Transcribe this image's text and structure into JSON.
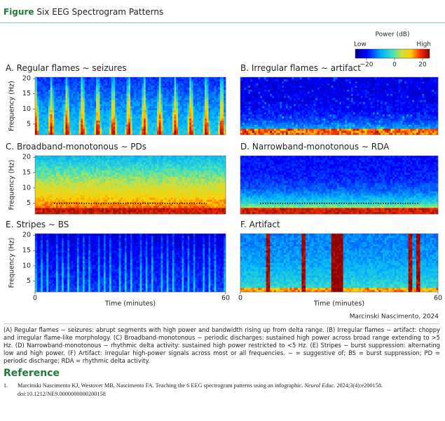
{
  "header": {
    "label": "Figure",
    "title": "Six EEG Spectrogram Patterns"
  },
  "colorbar": {
    "title": "Power (dB)",
    "low": "Low",
    "high": "High",
    "clim": [
      -28,
      25
    ],
    "ticks": [
      {
        "value": -20,
        "label": "−20"
      },
      0,
      20
    ]
  },
  "axes": {
    "ylabel": "Frequency (Hz)",
    "ylim": [
      1.5,
      20.5
    ],
    "yticks": [
      5,
      10,
      15,
      20
    ],
    "xlabel": "Time (minutes)",
    "xlim": [
      0,
      60
    ],
    "xticks": [
      0,
      60
    ]
  },
  "panels": [
    {
      "letter": "A.",
      "title": "Regular flames ∼ seizures"
    },
    {
      "letter": "B.",
      "title": "Irregular flames ∼ artifact"
    },
    {
      "letter": "C.",
      "title": "Broadband-monotonous ∼ PDs"
    },
    {
      "letter": "D.",
      "title": "Narrowband-monotonous ∼ RDA"
    },
    {
      "letter": "E.",
      "title": "Stripes ∼ BS"
    },
    {
      "letter": "F.",
      "title": "Artifact"
    }
  ],
  "credit": "Marcinski Nascimento, 2024",
  "caption": "(A) Regular flames ∼ seizures: abrupt segments with high power and bandwidth rising up from delta range. (B) Irregular flames ∼ artifact: choppy and irregular flame-like morphology. (C) Broadband-monotonous ∼ periodic discharges: sustained high power across broad range extending to >5 Hz. (D) Narrowband-monotonous ∼ rhythmic delta activity: sustained high power restricted to <5 Hz. (E) Stripes ∼ burst suppression: alternating low and high power. (F) Artifact: irregular high-power signals across most or all frequencies. ∼ = suggestive of; BS = burst suppression; PD = periodic discharge; RDA = rhythmic delta activity.",
  "reference": {
    "heading": "Reference",
    "items": [
      {
        "number": "1.",
        "text": "Marcinski Nascimento KJ, Westover MB, Nascimento FA. Teaching the 6 EEG spectrogram patterns using an infographic.",
        "journal": "Neurol Educ.",
        "citation": "2024;3(4):e200158. doi:10.1212/NE9.0000000000200158"
      }
    ]
  }
}
